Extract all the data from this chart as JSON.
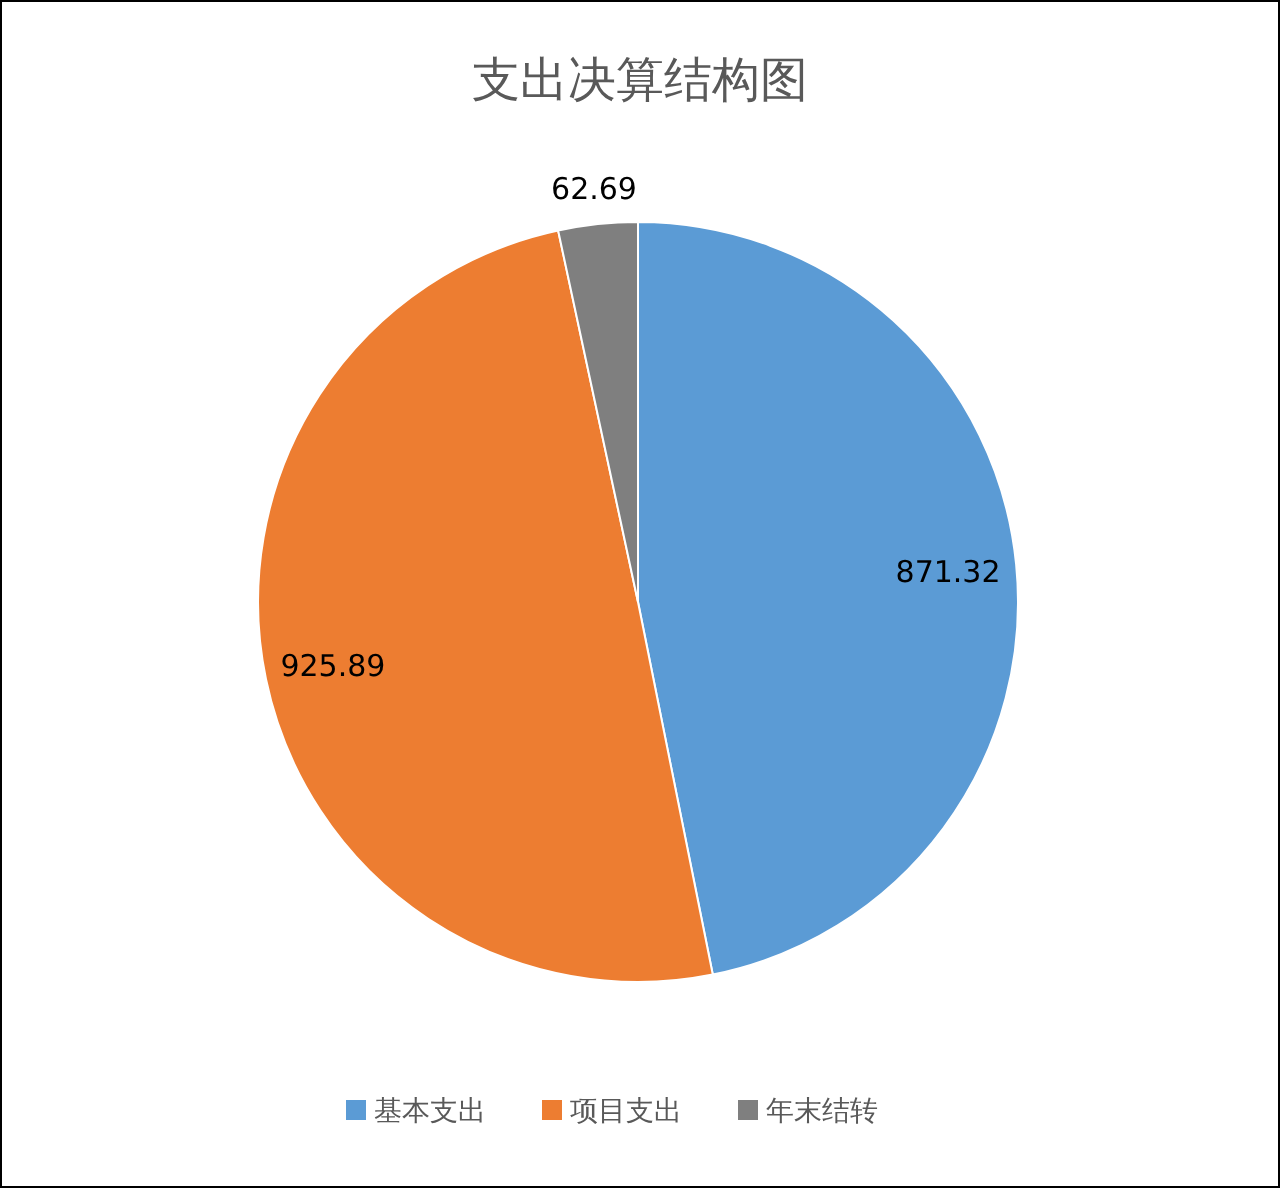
{
  "chart_data": {
    "type": "pie",
    "title": "支出决算结构图",
    "categories": [
      "基本支出",
      "项目支出",
      "年末结转"
    ],
    "values": [
      871.32,
      925.89,
      62.69
    ],
    "colors": [
      "#5b9bd5",
      "#ed7d31",
      "#7f7f7f"
    ],
    "data_labels": true,
    "legend": "bottom"
  }
}
